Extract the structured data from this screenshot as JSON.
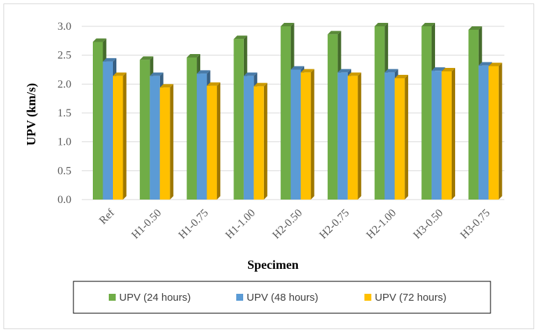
{
  "chart_data": {
    "type": "bar",
    "categories": [
      "Ref",
      "H1-0.50",
      "H1-0.75",
      "H1-1.00",
      "H2-0.50",
      "H2-0.75",
      "H2-1.00",
      "H3-0.50",
      "H3-0.75"
    ],
    "series": [
      {
        "name": "UPV (24 hours)",
        "color": "#70ad47",
        "values": [
          2.73,
          2.42,
          2.46,
          2.78,
          3.0,
          2.86,
          3.0,
          3.0,
          2.94
        ]
      },
      {
        "name": "UPV (48 hours)",
        "color": "#5b9bd5",
        "values": [
          2.39,
          2.14,
          2.18,
          2.14,
          2.25,
          2.2,
          2.2,
          2.23,
          2.32
        ]
      },
      {
        "name": "UPV (72 hours)",
        "color": "#ffc000",
        "values": [
          2.14,
          1.94,
          1.97,
          1.96,
          2.2,
          2.14,
          2.1,
          2.22,
          2.31
        ]
      }
    ],
    "xlabel": "Specimen",
    "ylabel": "UPV (km/s)",
    "ylim": [
      0,
      3.0
    ],
    "yticks": [
      "0.0",
      "0.5",
      "1.0",
      "1.5",
      "2.0",
      "2.5",
      "3.0"
    ],
    "grid": true,
    "legend_position": "bottom"
  }
}
